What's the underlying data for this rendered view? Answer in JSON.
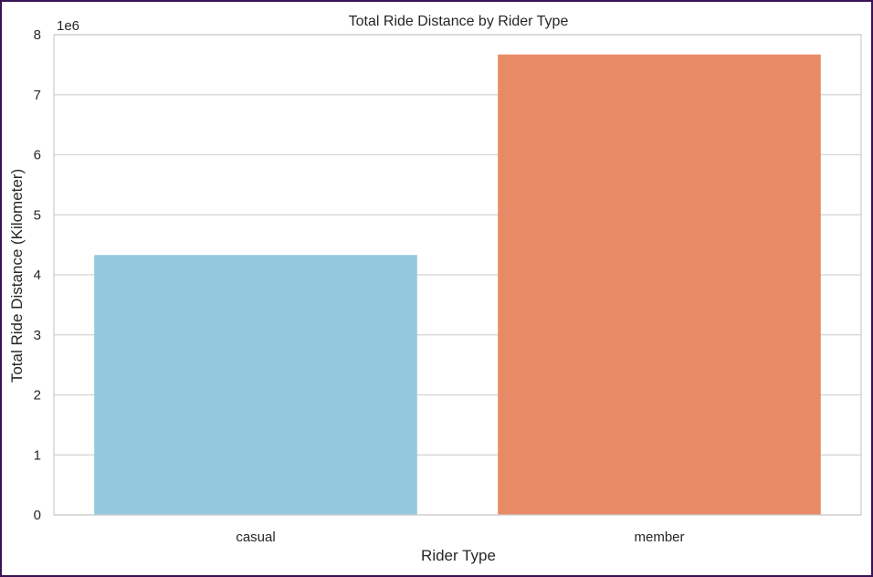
{
  "chart_data": {
    "type": "bar",
    "title": "Total Ride Distance by Rider Type",
    "xlabel": "Rider Type",
    "ylabel": "Total Ride Distance (Kilometer)",
    "offset_label": "1e6",
    "categories": [
      "casual",
      "member"
    ],
    "values": [
      4330000,
      7670000
    ],
    "ylim": [
      0,
      8000000
    ],
    "yticks": [
      0,
      1,
      2,
      3,
      4,
      5,
      6,
      7,
      8
    ],
    "ytick_scale": 1000000,
    "grid": "horizontal",
    "colors": [
      "#95c8de",
      "#e98a67"
    ]
  },
  "style": {
    "frame_color": "#3b1254",
    "grid_color": "#d3d3d3",
    "axis_color": "#cccccc"
  }
}
